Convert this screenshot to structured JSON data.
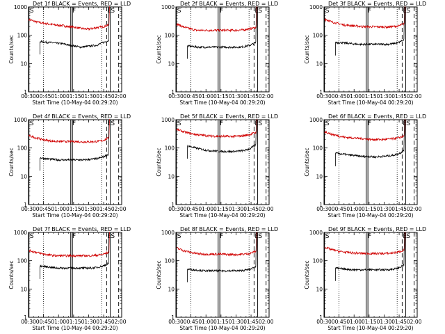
{
  "chart_data": {
    "type": "line",
    "x_tick_labels": [
      "00:30",
      "00:45",
      "01:00",
      "01:15",
      "01:30",
      "01:45",
      "02:00"
    ],
    "x_range_minutes_after_0030": [
      0,
      93
    ],
    "y_scale": "log",
    "y_range": [
      1,
      1000
    ],
    "y_tick_labels": [
      "1",
      "10",
      "100",
      "1000"
    ],
    "ylabel": "Counts/sec",
    "xlabel": "Start Time (10-May-04 00:29:20)",
    "series_colors": {
      "events": "#000000",
      "lld": "#d00000"
    },
    "markers": [
      {
        "label": "S",
        "minute": 0.5,
        "style": "solid"
      },
      {
        "label": "F",
        "minute": 43.0,
        "style": "solid"
      },
      {
        "label": "E",
        "minute": 78.0,
        "style": "dashed"
      },
      {
        "label": "S",
        "minute": 81.5,
        "style": "solid"
      }
    ],
    "dotted_lines_minutes": [
      15.0,
      73.0
    ],
    "dashed_line_minute": 90.0,
    "panels": [
      {
        "title": "Det 1f BLACK = Events, RED = LLD",
        "lld": [
          360,
          300,
          270,
          250,
          230,
          220,
          200,
          190,
          170,
          165,
          185,
          200,
          230,
          1100
        ],
        "events": [
          60,
          57,
          55,
          52,
          50,
          45,
          42,
          38,
          40,
          42,
          45,
          55,
          65,
          1000
        ]
      },
      {
        "title": "Det 2f BLACK = Events, RED = LLD",
        "lld": [
          250,
          200,
          170,
          150,
          150,
          150,
          150,
          150,
          150,
          150,
          155,
          170,
          190,
          1100
        ],
        "events": [
          42,
          40,
          38,
          38,
          38,
          38,
          38,
          38,
          38,
          38,
          40,
          45,
          55,
          1000
        ]
      },
      {
        "title": "Det 3f BLACK = Events, RED = LLD",
        "lld": [
          380,
          300,
          260,
          230,
          220,
          210,
          200,
          200,
          200,
          195,
          200,
          210,
          260,
          1100
        ],
        "events": [
          55,
          55,
          52,
          50,
          48,
          48,
          48,
          48,
          48,
          48,
          50,
          55,
          70,
          1000
        ]
      },
      {
        "title": "Det 4f BLACK = Events, RED = LLD",
        "lld": [
          270,
          230,
          200,
          180,
          170,
          170,
          170,
          170,
          165,
          165,
          170,
          180,
          230,
          1100
        ],
        "events": [
          45,
          42,
          40,
          38,
          38,
          38,
          38,
          38,
          38,
          40,
          42,
          48,
          60,
          1000
        ]
      },
      {
        "title": "Det 5f BLACK = Events, RED = LLD",
        "lld": [
          450,
          380,
          330,
          300,
          280,
          270,
          260,
          260,
          255,
          260,
          270,
          300,
          360,
          1100
        ],
        "events": [
          120,
          105,
          95,
          85,
          80,
          78,
          75,
          75,
          75,
          78,
          82,
          95,
          130,
          1000
        ]
      },
      {
        "title": "Det 6f BLACK = Events, RED = LLD",
        "lld": [
          380,
          310,
          270,
          240,
          230,
          220,
          210,
          200,
          200,
          200,
          210,
          225,
          270,
          1100
        ],
        "events": [
          65,
          62,
          58,
          55,
          52,
          50,
          50,
          48,
          50,
          52,
          55,
          62,
          80,
          1000
        ]
      },
      {
        "title": "Det 7f BLACK = Events, RED = LLD",
        "lld": [
          230,
          200,
          175,
          160,
          150,
          150,
          150,
          150,
          150,
          150,
          155,
          165,
          200,
          1100
        ],
        "events": [
          65,
          62,
          58,
          55,
          55,
          55,
          55,
          55,
          55,
          55,
          58,
          65,
          80,
          1000
        ]
      },
      {
        "title": "Det 8f BLACK = Events, RED = LLD",
        "lld": [
          280,
          230,
          200,
          180,
          170,
          170,
          170,
          170,
          165,
          165,
          170,
          180,
          220,
          1100
        ],
        "events": [
          50,
          48,
          46,
          44,
          44,
          44,
          44,
          44,
          44,
          44,
          46,
          50,
          62,
          1000
        ]
      },
      {
        "title": "Det 9f BLACK = Events, RED = LLD",
        "lld": [
          300,
          250,
          220,
          200,
          190,
          185,
          180,
          180,
          180,
          180,
          185,
          200,
          240,
          1100
        ],
        "events": [
          55,
          52,
          50,
          48,
          48,
          48,
          48,
          48,
          48,
          48,
          50,
          55,
          70,
          1000
        ]
      }
    ]
  }
}
